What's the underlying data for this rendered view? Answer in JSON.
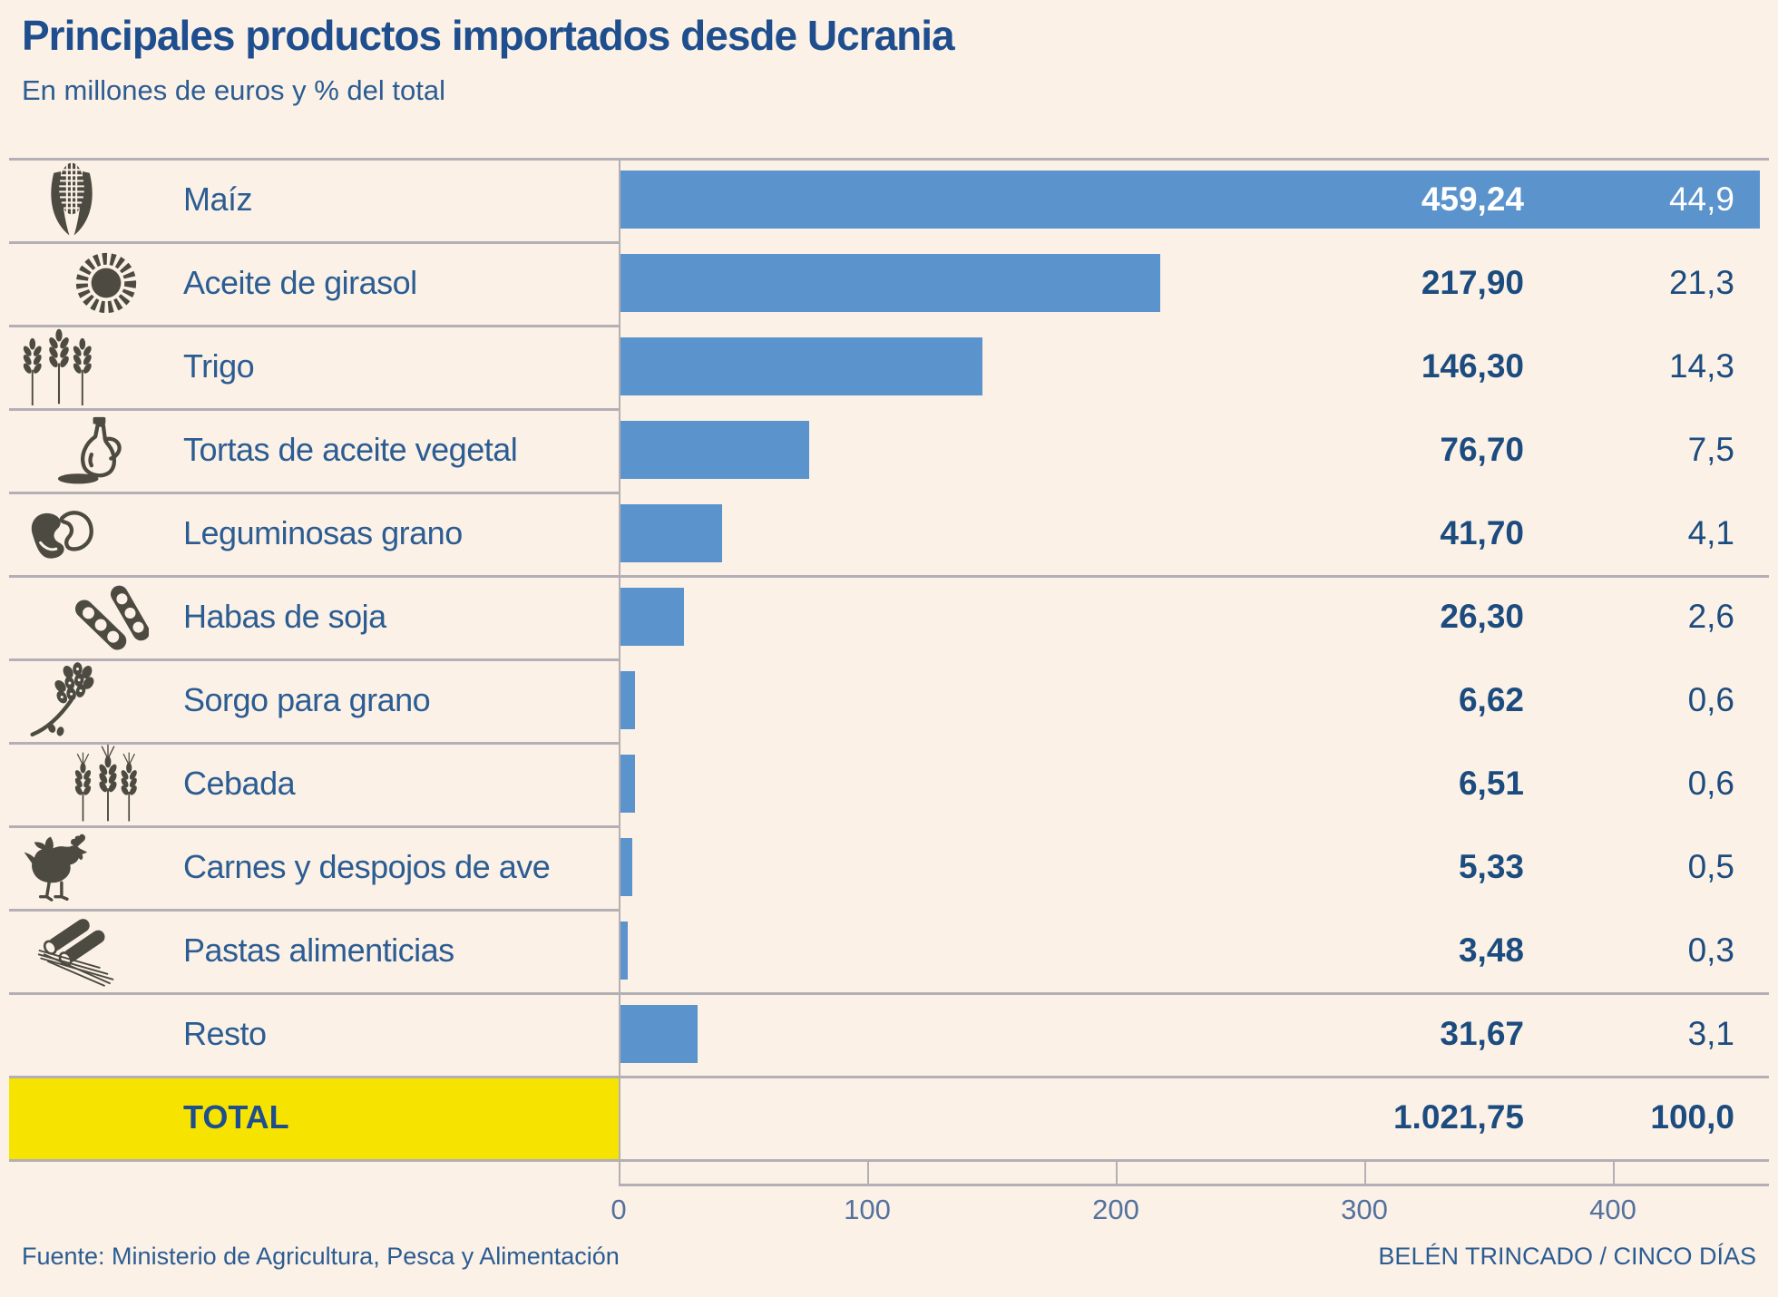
{
  "title": "Principales productos importados desde Ucrania",
  "subtitle": "En millones de euros y % del total",
  "footer": {
    "source": "Fuente: Ministerio de Agricultura, Pesca y Alimentación",
    "credit": "BELÉN TRINCADO / CINCO DÍAS"
  },
  "colors": {
    "background": "#fbf1e7",
    "bar": "#5b93cc",
    "accent_navy": "#1e4e8d",
    "label_blue": "#2b5c92",
    "value_navy": "#1c4c7f",
    "tick_blue": "#54719e",
    "total_yellow": "#f6e400",
    "icon_olive": "#4c4a41",
    "line_gray": "#b3afb5",
    "bar_text_white": "#ffffff"
  },
  "chart_data": {
    "type": "bar",
    "orientation": "horizontal",
    "title": "Principales productos importados desde Ucrania",
    "unit_note": "En millones de euros y % del total",
    "xlim": [
      0,
      460
    ],
    "x_axis": {
      "ticks": [
        0,
        100,
        200,
        300,
        400
      ],
      "tick_labels": [
        "0",
        "100",
        "200",
        "300",
        "400"
      ]
    },
    "rows": [
      {
        "label": "Maíz",
        "icon": "corn-icon",
        "value": 459.24,
        "value_label": "459,24",
        "pct": 44.9,
        "pct_label": "44,9"
      },
      {
        "label": "Aceite de girasol",
        "icon": "sunflower-icon",
        "value": 217.9,
        "value_label": "217,90",
        "pct": 21.3,
        "pct_label": "21,3"
      },
      {
        "label": "Trigo",
        "icon": "wheat-icon",
        "value": 146.3,
        "value_label": "146,30",
        "pct": 14.3,
        "pct_label": "14,3"
      },
      {
        "label": "Tortas de aceite vegetal",
        "icon": "oil-jug-icon",
        "value": 76.7,
        "value_label": "76,70",
        "pct": 7.5,
        "pct_label": "7,5"
      },
      {
        "label": "Leguminosas grano",
        "icon": "beans-icon",
        "value": 41.7,
        "value_label": "41,70",
        "pct": 4.1,
        "pct_label": "4,1"
      },
      {
        "label": "Habas de soja",
        "icon": "soy-pod-icon",
        "value": 26.3,
        "value_label": "26,30",
        "pct": 2.6,
        "pct_label": "2,6"
      },
      {
        "label": "Sorgo para grano",
        "icon": "sorghum-icon",
        "value": 6.62,
        "value_label": "6,62",
        "pct": 0.6,
        "pct_label": "0,6"
      },
      {
        "label": "Cebada",
        "icon": "barley-icon",
        "value": 6.51,
        "value_label": "6,51",
        "pct": 0.6,
        "pct_label": "0,6"
      },
      {
        "label": "Carnes y despojos de ave",
        "icon": "chicken-icon",
        "value": 5.33,
        "value_label": "5,33",
        "pct": 0.5,
        "pct_label": "0,5"
      },
      {
        "label": "Pastas alimenticias",
        "icon": "pasta-icon",
        "value": 3.48,
        "value_label": "3,48",
        "pct": 0.3,
        "pct_label": "0,3"
      },
      {
        "label": "Resto",
        "icon": null,
        "value": 31.67,
        "value_label": "31,67",
        "pct": 3.1,
        "pct_label": "3,1"
      }
    ],
    "total": {
      "label": "TOTAL",
      "value": 1021.75,
      "value_label": "1.021,75",
      "pct": 100.0,
      "pct_label": "100,0"
    }
  }
}
